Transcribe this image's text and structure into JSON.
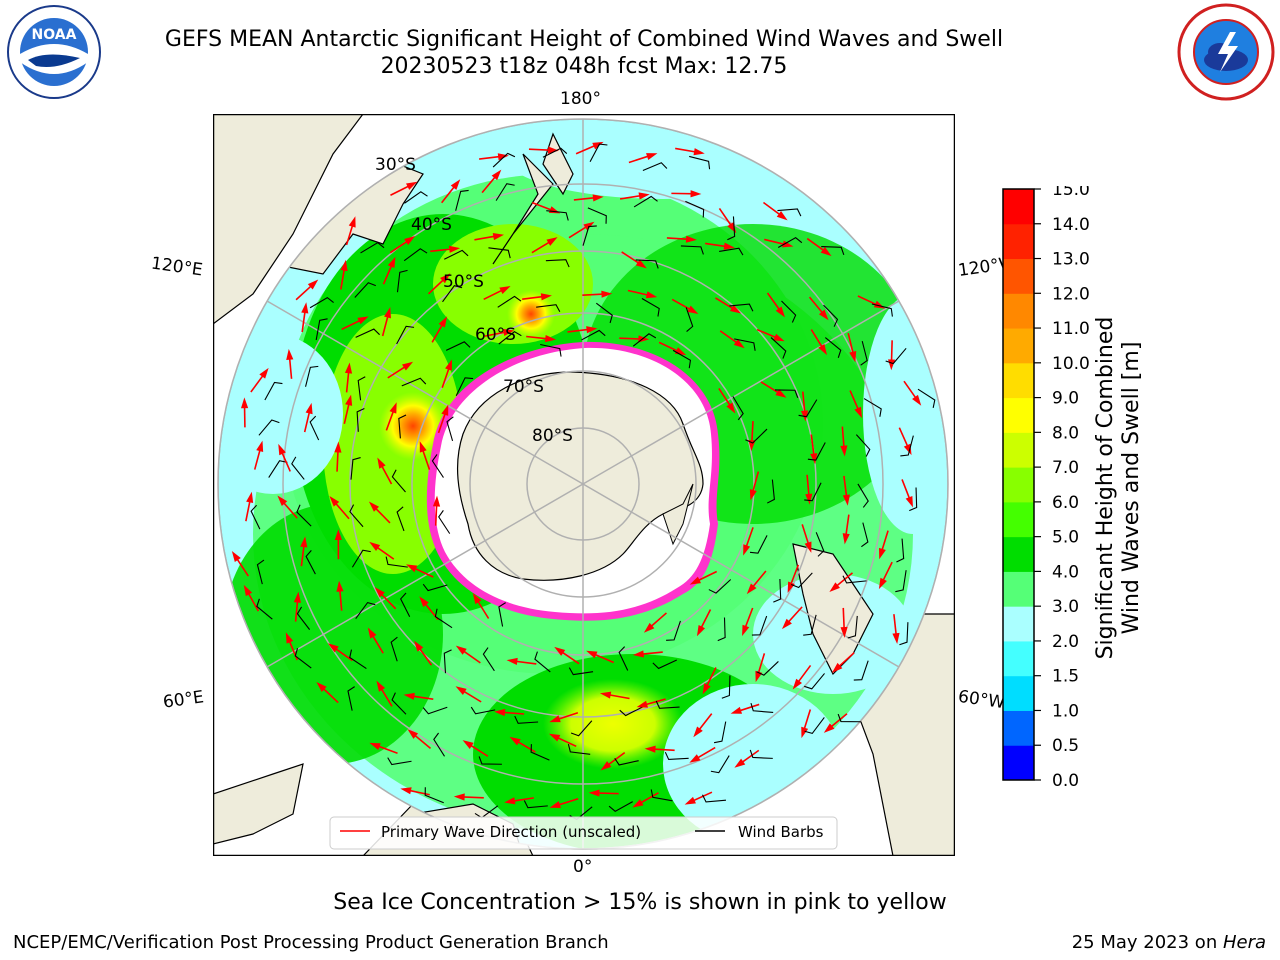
{
  "header": {
    "title_line1": "GEFS MEAN Antarctic Significant Height of Combined Wind Waves and Swell",
    "title_line2": "20230523 t18z 048h fcst   Max: 12.75"
  },
  "logos": {
    "left": "noaa-logo",
    "right": "nws-logo"
  },
  "map": {
    "lon_labels": {
      "top": "180°",
      "bottom": "0°",
      "left_upper": "120°E",
      "left_lower": "60°E",
      "right_upper": "120°W",
      "right_lower": "60°W"
    },
    "lat_labels": [
      "30°S",
      "40°S",
      "50°S",
      "60°S",
      "70°S",
      "80°S"
    ],
    "legend": {
      "wave_direction": "Primary Wave Direction (unscaled)",
      "wind_barbs": "Wind Barbs"
    },
    "colors": {
      "land": "#eeecdb",
      "ice": "#ff33cc",
      "wave_arrow": "#ff0000",
      "grid": "#b0b0b0"
    }
  },
  "colorbar": {
    "label_line1": "Significant Height of Combined",
    "label_line2": "Wind Waves and Swell [m]",
    "ticks": [
      "15.0",
      "14.0",
      "13.0",
      "12.0",
      "11.0",
      "10.0",
      "9.0",
      "8.0",
      "7.0",
      "6.0",
      "5.0",
      "4.0",
      "3.0",
      "2.0",
      "1.5",
      "1.0",
      "0.5",
      "0.0"
    ],
    "colors": [
      "#0000ff",
      "#0066ff",
      "#00ddff",
      "#44ffff",
      "#aaffff",
      "#55ff77",
      "#00dd00",
      "#44ff00",
      "#88ff00",
      "#ccff00",
      "#ffff00",
      "#ffdd00",
      "#ffaa00",
      "#ff8800",
      "#ff5500",
      "#ff2200",
      "#ff0000"
    ]
  },
  "notes": {
    "sea_ice": "Sea Ice Concentration > 15% is shown in pink to yellow"
  },
  "footer": {
    "left": "NCEP/EMC/Verification Post Processing Product Generation Branch",
    "right_prefix": "25 May 2023 on ",
    "right_host": "Hera"
  }
}
